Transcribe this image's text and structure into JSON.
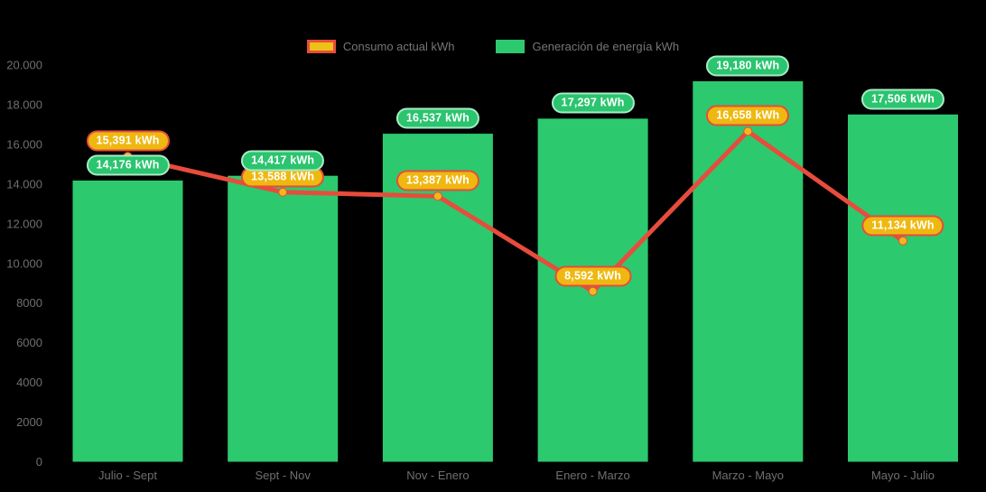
{
  "legend": {
    "items": [
      {
        "label": "Consumo actual kWh",
        "swatch_fill": "#eec117",
        "swatch_border": "#e74c3c"
      },
      {
        "label": "Generación de energía kWh",
        "swatch_fill": "#2dc96e",
        "swatch_border": "#2dc96e"
      }
    ]
  },
  "chart_data": {
    "type": "bar",
    "subtype": "bar-line-combo",
    "categories": [
      "Julio - Sept",
      "Sept - Nov",
      "Nov - Enero",
      "Enero - Marzo",
      "Marzo - Mayo",
      "Mayo - Julio"
    ],
    "series": [
      {
        "name": "Consumo actual kWh",
        "type": "line",
        "line_color": "#e74c3c",
        "point_fill": "#f3b71c",
        "values": [
          15391,
          13588,
          13387,
          8592,
          16658,
          11134
        ],
        "labels": [
          "15,391 kWh",
          "13,588 kWh",
          "13,387 kWh",
          "8,592 kWh",
          "16,658 kWh",
          "11,134 kWh"
        ],
        "pill_fill": "#efb810",
        "pill_border": "#e74c3c"
      },
      {
        "name": "Generación de energía kWh",
        "type": "bar",
        "bar_color": "#2dc96e",
        "values": [
          14176,
          14417,
          16537,
          17297,
          19180,
          17506
        ],
        "labels": [
          "14,176 kWh",
          "14,417 kWh",
          "16,537 kWh",
          "17,297 kWh",
          "19,180 kWh",
          "17,506 kWh"
        ],
        "pill_fill": "#2bc46f",
        "pill_border": "#a7ecc5"
      }
    ],
    "xlabel": "",
    "ylabel": "",
    "title": "",
    "ylim": [
      0,
      20000
    ],
    "ytick_labels": [
      "20.000",
      "18.000",
      "16.000",
      "14.000",
      "12.000",
      "10.000",
      "8000",
      "6000",
      "4000",
      "2000",
      "0"
    ],
    "grid": false,
    "legend_position": "top",
    "axis_text_color": "#6f6f6f",
    "background_color": "#000000",
    "label_unit": "kWh"
  }
}
